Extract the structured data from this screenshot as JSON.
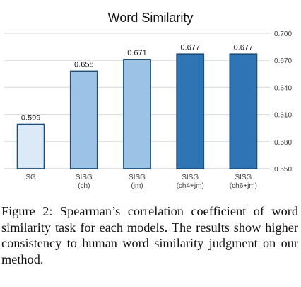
{
  "chart_data": {
    "type": "bar",
    "title": "Word Similarity",
    "categories": [
      [
        "SG"
      ],
      [
        "SISG",
        "(ch)"
      ],
      [
        "SISG",
        "(jm)"
      ],
      [
        "SISG",
        "(ch4+jm)"
      ],
      [
        "SISG",
        "(ch6+jm)"
      ]
    ],
    "values": [
      0.599,
      0.658,
      0.671,
      0.677,
      0.677
    ],
    "value_labels": [
      "0.599",
      "0.658",
      "0.671",
      "0.677",
      "0.677"
    ],
    "bar_colors": [
      "#dce9f6",
      "#9cc2e6",
      "#9cc2e6",
      "#2f75b6",
      "#2f75b6"
    ],
    "bar_outline": "#1f4e79",
    "ylim": [
      0.55,
      0.7
    ],
    "yticks": [
      "0.550",
      "0.580",
      "0.610",
      "0.640",
      "0.670",
      "0.700"
    ],
    "ytick_values": [
      0.55,
      0.58,
      0.61,
      0.64,
      0.67,
      0.7
    ],
    "y_axis_side": "right",
    "grid": true,
    "xlabel": "",
    "ylabel": ""
  },
  "caption": "Figure 2: Spearman’s correlation coefficient of word similarity task for each models. The results show higher consistency to human word similarity judgment on our method."
}
